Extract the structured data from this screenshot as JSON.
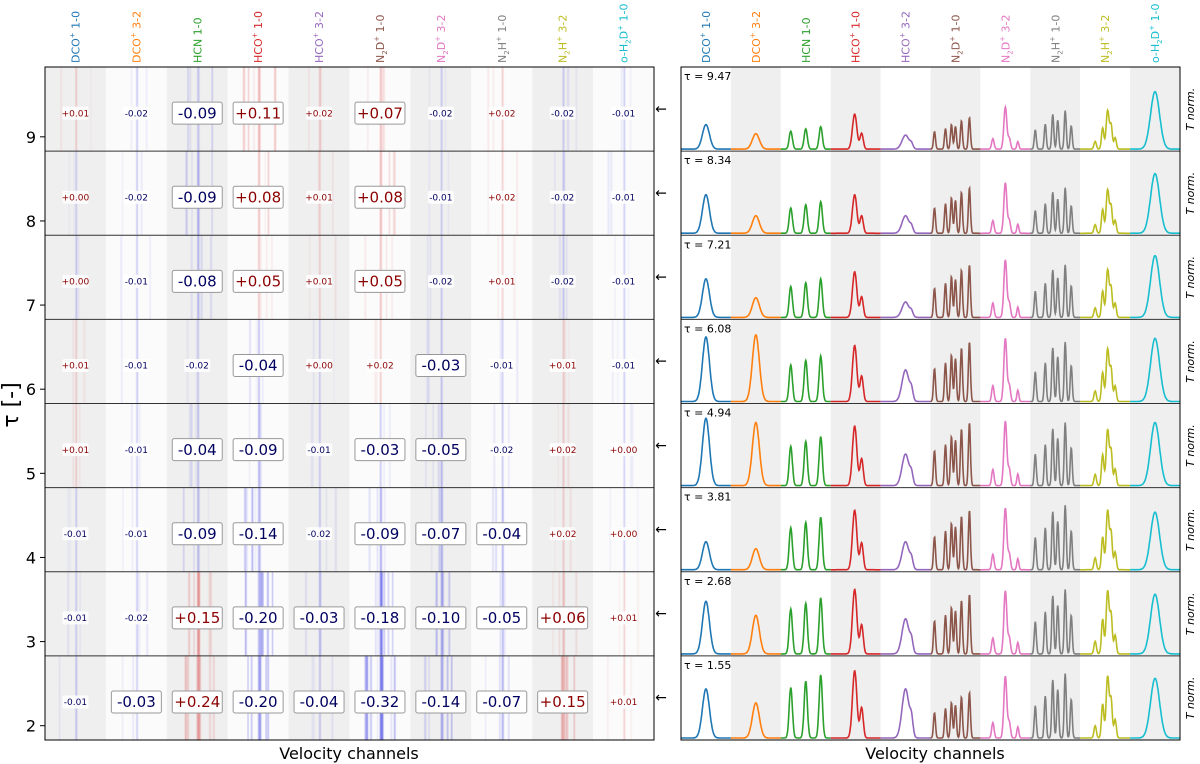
{
  "figure": {
    "ylabel": "τ [-]",
    "xlabel_left": "Velocity channels",
    "xlabel_right": "Velocity channels",
    "side_label": "T norm.",
    "arrow": "←"
  },
  "molecules": [
    {
      "base": "DCO",
      "sub": "",
      "sup": "+",
      "trans": "1-0",
      "color": "#1f77b4"
    },
    {
      "base": "DCO",
      "sub": "",
      "sup": "+",
      "trans": "3-2",
      "color": "#ff7f0e"
    },
    {
      "base": "HCN",
      "sub": "",
      "sup": "",
      "trans": "1-0",
      "color": "#2ca02c"
    },
    {
      "base": "HCO",
      "sub": "",
      "sup": "+",
      "trans": "1-0",
      "color": "#d62728"
    },
    {
      "base": "HCO",
      "sub": "",
      "sup": "+",
      "trans": "3-2",
      "color": "#9467bd"
    },
    {
      "base": "N",
      "sub": "2",
      "tail": "D",
      "sup": "+",
      "trans": "1-0",
      "color": "#8c564b"
    },
    {
      "base": "N",
      "sub": "2",
      "tail": "D",
      "sup": "+",
      "trans": "3-2",
      "color": "#e377c2"
    },
    {
      "base": "N",
      "sub": "2",
      "tail": "H",
      "sup": "+",
      "trans": "1-0",
      "color": "#7f7f7f"
    },
    {
      "base": "N",
      "sub": "2",
      "tail": "H",
      "sup": "+",
      "trans": "3-2",
      "color": "#bcbd22"
    },
    {
      "base": "o-H",
      "sub": "2",
      "tail": "D",
      "sup": "+",
      "trans": "1-0",
      "color": "#17becf"
    }
  ],
  "chart_data": [
    {
      "type": "heatmap",
      "panel": "attribution per molecule and tau bin",
      "ylabel": "τ [-]",
      "xlabel": "Velocity channels",
      "y_ticks": [
        "9",
        "8",
        "7",
        "6",
        "5",
        "4",
        "3",
        "2"
      ],
      "rows": [
        {
          "tau": 9.47,
          "values": [
            "+0.01",
            "-0.02",
            "-0.09",
            "+0.11",
            "+0.02",
            "+0.07",
            "-0.02",
            "+0.02",
            "-0.02",
            "-0.01"
          ]
        },
        {
          "tau": 8.34,
          "values": [
            "+0.00",
            "-0.02",
            "-0.09",
            "+0.08",
            "+0.01",
            "+0.08",
            "-0.01",
            "+0.02",
            "-0.02",
            "-0.01"
          ]
        },
        {
          "tau": 7.21,
          "values": [
            "+0.00",
            "-0.01",
            "-0.08",
            "+0.05",
            "+0.01",
            "+0.05",
            "-0.02",
            "+0.01",
            "-0.02",
            "-0.01"
          ]
        },
        {
          "tau": 6.08,
          "values": [
            "+0.01",
            "-0.01",
            "-0.02",
            "-0.04",
            "+0.00",
            "+0.02",
            "-0.03",
            "-0.01",
            "+0.01",
            "-0.01"
          ]
        },
        {
          "tau": 4.94,
          "values": [
            "+0.01",
            "-0.01",
            "-0.04",
            "-0.09",
            "-0.01",
            "-0.03",
            "-0.05",
            "-0.02",
            "+0.02",
            "+0.00"
          ]
        },
        {
          "tau": 3.81,
          "values": [
            "-0.01",
            "-0.01",
            "-0.09",
            "-0.14",
            "-0.02",
            "-0.09",
            "-0.07",
            "-0.04",
            "+0.02",
            "+0.00"
          ]
        },
        {
          "tau": 2.68,
          "values": [
            "-0.01",
            "-0.02",
            "+0.15",
            "-0.20",
            "-0.03",
            "-0.18",
            "-0.10",
            "-0.05",
            "+0.06",
            "+0.01"
          ]
        },
        {
          "tau": 1.55,
          "values": [
            "-0.01",
            "-0.03",
            "+0.24",
            "-0.20",
            "-0.04",
            "-0.32",
            "-0.14",
            "-0.07",
            "+0.15",
            "+0.01"
          ]
        }
      ]
    },
    {
      "type": "line",
      "panel": "normalized spectra per molecule and tau bin",
      "xlabel": "Velocity channels",
      "ylabel": "T norm.",
      "tau_labels": [
        "τ = 9.47",
        "τ = 8.34",
        "τ = 7.21",
        "τ = 6.08",
        "τ = 4.94",
        "τ = 3.81",
        "τ = 2.68",
        "τ = 1.55"
      ],
      "peak_heights": [
        [
          0.35,
          0.22,
          0.32,
          0.5,
          0.2,
          0.45,
          0.6,
          0.55,
          0.55,
          0.82
        ],
        [
          0.55,
          0.25,
          0.45,
          0.55,
          0.25,
          0.65,
          0.72,
          0.65,
          0.62,
          0.85
        ],
        [
          0.55,
          0.28,
          0.55,
          0.65,
          0.22,
          0.75,
          0.82,
          0.75,
          0.68,
          0.88
        ],
        [
          0.92,
          0.95,
          0.65,
          0.8,
          0.45,
          0.85,
          0.9,
          0.85,
          0.75,
          0.9
        ],
        [
          0.96,
          0.9,
          0.7,
          0.85,
          0.45,
          0.9,
          0.92,
          0.9,
          0.8,
          0.9
        ],
        [
          0.4,
          0.3,
          0.75,
          0.85,
          0.4,
          0.85,
          0.88,
          0.92,
          0.85,
          0.82
        ],
        [
          0.75,
          0.55,
          0.8,
          0.92,
          0.5,
          0.85,
          0.9,
          0.92,
          0.9,
          0.85
        ],
        [
          0.7,
          0.5,
          0.9,
          0.96,
          0.7,
          0.65,
          0.88,
          0.92,
          0.88,
          0.85
        ]
      ]
    }
  ]
}
